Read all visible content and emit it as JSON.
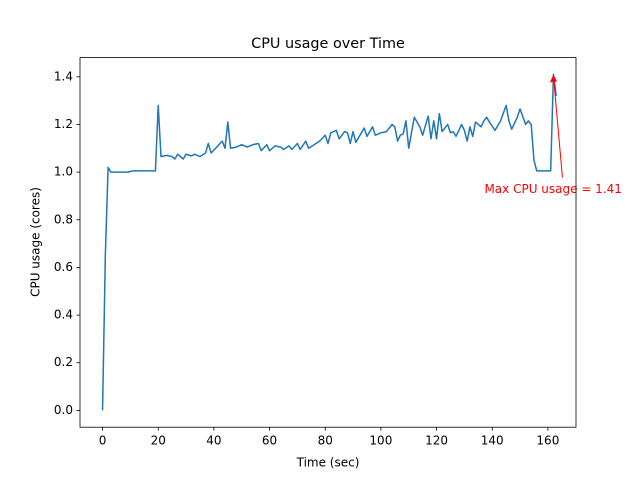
{
  "chart_data": {
    "type": "line",
    "title": "CPU usage over Time",
    "xlabel": "Time (sec)",
    "ylabel": "CPU usage (cores)",
    "x": [
      0,
      1,
      2,
      3,
      6,
      9,
      11,
      14,
      17,
      19,
      20,
      21,
      23,
      25,
      26,
      27,
      29,
      30,
      32,
      33,
      35,
      37,
      38,
      39,
      41,
      43,
      44,
      45,
      46,
      48,
      50,
      52,
      54,
      56,
      57,
      59,
      60,
      62,
      64,
      65,
      67,
      68,
      70,
      71,
      73,
      74,
      76,
      78,
      80,
      81,
      82,
      84,
      85,
      87,
      88,
      89,
      90,
      91,
      93,
      94,
      95,
      97,
      98,
      100,
      102,
      104,
      105,
      106,
      107,
      108,
      109,
      110,
      112,
      114,
      115,
      117,
      118,
      119,
      120,
      121,
      122,
      124,
      125,
      126,
      127,
      129,
      130,
      131,
      132,
      133,
      134,
      136,
      137,
      138,
      139,
      141,
      143,
      145,
      146,
      147,
      149,
      150,
      152,
      153,
      154,
      155,
      156,
      158,
      160,
      161,
      162,
      163
    ],
    "series": [
      {
        "name": "CPU usage",
        "color": "#1f77b4",
        "values": [
          0,
          0.65,
          1.02,
          1.0,
          1.0,
          1.0,
          1.005,
          1.005,
          1.005,
          1.005,
          1.28,
          1.065,
          1.07,
          1.065,
          1.055,
          1.075,
          1.055,
          1.075,
          1.068,
          1.075,
          1.065,
          1.08,
          1.12,
          1.08,
          1.105,
          1.13,
          1.1,
          1.21,
          1.1,
          1.105,
          1.115,
          1.105,
          1.115,
          1.12,
          1.09,
          1.115,
          1.09,
          1.11,
          1.105,
          1.095,
          1.11,
          1.095,
          1.12,
          1.095,
          1.13,
          1.1,
          1.115,
          1.13,
          1.155,
          1.12,
          1.165,
          1.175,
          1.14,
          1.17,
          1.165,
          1.12,
          1.17,
          1.125,
          1.165,
          1.185,
          1.15,
          1.19,
          1.155,
          1.165,
          1.17,
          1.2,
          1.19,
          1.13,
          1.155,
          1.16,
          1.215,
          1.1,
          1.23,
          1.19,
          1.155,
          1.235,
          1.14,
          1.215,
          1.14,
          1.245,
          1.17,
          1.2,
          1.165,
          1.17,
          1.15,
          1.2,
          1.175,
          1.13,
          1.19,
          1.15,
          1.21,
          1.19,
          1.215,
          1.23,
          1.21,
          1.175,
          1.215,
          1.28,
          1.215,
          1.18,
          1.23,
          1.265,
          1.2,
          1.215,
          1.2,
          1.05,
          1.005,
          1.005,
          1.005,
          1.005,
          1.41,
          1.32
        ]
      }
    ],
    "annotation": {
      "text": "Max CPU usage = 1.41",
      "x": 162,
      "y": 1.41,
      "color": "#ff0000"
    },
    "xlim": [
      -8.1,
      170.1
    ],
    "ylim": [
      -0.0705,
      1.4805
    ],
    "xticks": [
      0,
      20,
      40,
      60,
      80,
      100,
      120,
      140,
      160
    ],
    "yticks": [
      {
        "value": 0,
        "label": "0.0"
      },
      0.2,
      0.4,
      0.6,
      0.8,
      {
        "value": 1,
        "label": "1.0"
      },
      1.2,
      1.4
    ]
  }
}
